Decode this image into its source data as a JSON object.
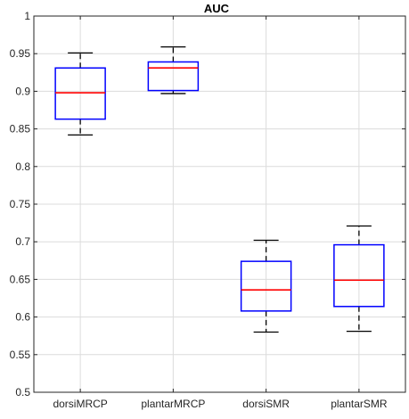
{
  "chart_data": {
    "type": "box",
    "title": "AUC",
    "xlabel": "",
    "ylabel": "",
    "ylim": [
      0.5,
      1.0
    ],
    "yticks": [
      0.5,
      0.55,
      0.6,
      0.65,
      0.7,
      0.75,
      0.8,
      0.85,
      0.9,
      0.95,
      1
    ],
    "ytick_labels": [
      "0.5",
      "0.55",
      "0.6",
      "0.65",
      "0.7",
      "0.75",
      "0.8",
      "0.85",
      "0.9",
      "0.95",
      "1"
    ],
    "grid": true,
    "categories": [
      "dorsiMRCP",
      "plantarMRCP",
      "dorsiSMR",
      "plantarSMR"
    ],
    "boxes": [
      {
        "category": "dorsiMRCP",
        "whisker_low": 0.842,
        "q1": 0.863,
        "median": 0.898,
        "q3": 0.931,
        "whisker_high": 0.951
      },
      {
        "category": "plantarMRCP",
        "whisker_low": 0.897,
        "q1": 0.901,
        "median": 0.931,
        "q3": 0.939,
        "whisker_high": 0.959
      },
      {
        "category": "dorsiSMR",
        "whisker_low": 0.58,
        "q1": 0.608,
        "median": 0.636,
        "q3": 0.674,
        "whisker_high": 0.702
      },
      {
        "category": "plantarSMR",
        "whisker_low": 0.581,
        "q1": 0.614,
        "median": 0.649,
        "q3": 0.696,
        "whisker_high": 0.721
      }
    ],
    "colors": {
      "box": "#0000ff",
      "median": "#ff0000",
      "whisker": "#000000",
      "grid": "#dcdcdc",
      "axis": "#262626"
    }
  }
}
